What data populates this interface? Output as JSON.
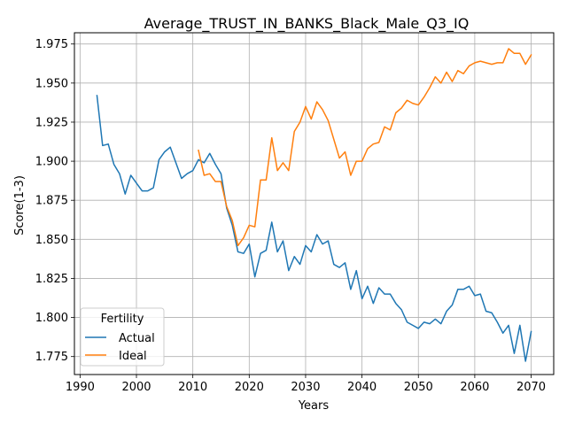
{
  "chart_data": {
    "type": "line",
    "title": "Average_TRUST_IN_BANKS_Black_Male_Q3_IQ",
    "xlabel": "Years",
    "ylabel": "Score(1-3)",
    "xlim": [
      1989,
      2074
    ],
    "ylim": [
      1.7635,
      1.9822
    ],
    "xticks": [
      1990,
      2000,
      2010,
      2020,
      2030,
      2040,
      2050,
      2060,
      2070
    ],
    "yticks": [
      1.775,
      1.8,
      1.825,
      1.85,
      1.875,
      1.9,
      1.925,
      1.95,
      1.975
    ],
    "xtick_labels": [
      "1990",
      "2000",
      "2010",
      "2020",
      "2030",
      "2040",
      "2050",
      "2060",
      "2070"
    ],
    "ytick_labels": [
      "1.775",
      "1.800",
      "1.825",
      "1.850",
      "1.875",
      "1.900",
      "1.925",
      "1.950",
      "1.975"
    ],
    "grid": true,
    "legend": {
      "title": "Fertility",
      "placement": "lower-left"
    },
    "series": [
      {
        "name": "Actual",
        "color": "#1f77b4",
        "x": [
          1993,
          1994,
          1995,
          1996,
          1997,
          1998,
          1999,
          2000,
          2001,
          2002,
          2003,
          2004,
          2005,
          2006,
          2007,
          2008,
          2009,
          2010,
          2011,
          2012,
          2013,
          2014,
          2015,
          2016,
          2017,
          2018,
          2019,
          2020,
          2021,
          2022,
          2023,
          2024,
          2025,
          2026,
          2027,
          2028,
          2029,
          2030,
          2031,
          2032,
          2033,
          2034,
          2035,
          2036,
          2037,
          2038,
          2039,
          2040,
          2041,
          2042,
          2043,
          2044,
          2045,
          2046,
          2047,
          2048,
          2049,
          2050,
          2051,
          2052,
          2053,
          2054,
          2055,
          2056,
          2057,
          2058,
          2059,
          2060,
          2061,
          2062,
          2063,
          2064,
          2065,
          2066,
          2067,
          2068,
          2069,
          2070
        ],
        "y": [
          1.942,
          1.91,
          1.911,
          1.898,
          1.892,
          1.879,
          1.891,
          1.886,
          1.881,
          1.881,
          1.883,
          1.901,
          1.906,
          1.909,
          1.899,
          1.889,
          1.892,
          1.894,
          1.901,
          1.899,
          1.905,
          1.898,
          1.892,
          1.87,
          1.859,
          1.842,
          1.841,
          1.847,
          1.826,
          1.841,
          1.843,
          1.861,
          1.842,
          1.849,
          1.83,
          1.839,
          1.834,
          1.846,
          1.842,
          1.853,
          1.847,
          1.849,
          1.834,
          1.832,
          1.835,
          1.818,
          1.83,
          1.812,
          1.82,
          1.809,
          1.819,
          1.815,
          1.815,
          1.809,
          1.805,
          1.797,
          1.795,
          1.793,
          1.797,
          1.796,
          1.799,
          1.796,
          1.804,
          1.808,
          1.818,
          1.818,
          1.82,
          1.814,
          1.815,
          1.804,
          1.803,
          1.797,
          1.79,
          1.795,
          1.777,
          1.795,
          1.772,
          1.791
        ]
      },
      {
        "name": "Ideal",
        "color": "#ff7f0e",
        "x": [
          2011,
          2012,
          2013,
          2014,
          2015,
          2016,
          2017,
          2018,
          2019,
          2020,
          2021,
          2022,
          2023,
          2024,
          2025,
          2026,
          2027,
          2028,
          2029,
          2030,
          2031,
          2032,
          2033,
          2034,
          2035,
          2036,
          2037,
          2038,
          2039,
          2040,
          2041,
          2042,
          2043,
          2044,
          2045,
          2046,
          2047,
          2048,
          2049,
          2050,
          2051,
          2052,
          2053,
          2054,
          2055,
          2056,
          2057,
          2058,
          2059,
          2060,
          2061,
          2062,
          2063,
          2064,
          2065,
          2066,
          2067,
          2068,
          2069,
          2070
        ],
        "y": [
          1.907,
          1.891,
          1.892,
          1.887,
          1.887,
          1.871,
          1.862,
          1.846,
          1.851,
          1.859,
          1.858,
          1.888,
          1.888,
          1.915,
          1.894,
          1.899,
          1.894,
          1.919,
          1.925,
          1.935,
          1.927,
          1.938,
          1.933,
          1.926,
          1.914,
          1.902,
          1.906,
          1.891,
          1.9,
          1.9,
          1.908,
          1.911,
          1.912,
          1.922,
          1.92,
          1.931,
          1.934,
          1.939,
          1.937,
          1.936,
          1.941,
          1.947,
          1.954,
          1.95,
          1.957,
          1.951,
          1.958,
          1.956,
          1.961,
          1.963,
          1.964,
          1.963,
          1.962,
          1.963,
          1.963,
          1.972,
          1.969,
          1.969,
          1.962,
          1.968
        ]
      }
    ]
  }
}
